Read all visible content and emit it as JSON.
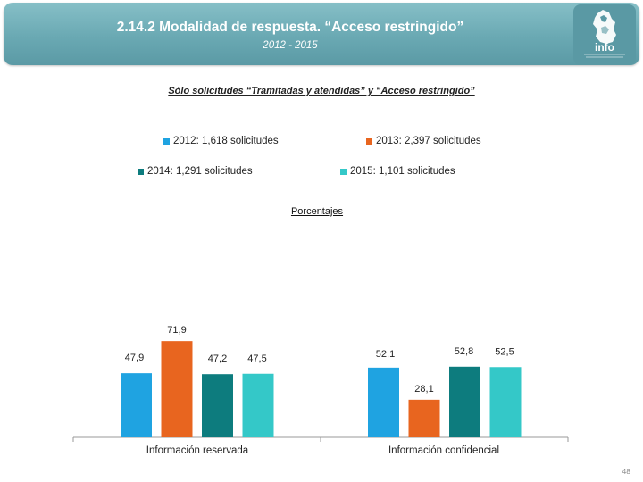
{
  "header": {
    "title": "2.14.2 Modalidad de respuesta. “Acceso restringido”",
    "years": "2012 - 2015",
    "logo_text": "info"
  },
  "subtitle": "Sólo solicitudes “Tramitadas y atendidas” y “Acceso restringido”",
  "legend": [
    {
      "label": "2012: 1,618 solicitudes",
      "color": "#1fa3e1"
    },
    {
      "label": "2013: 2,397 solicitudes",
      "color": "#e8651f"
    },
    {
      "label": "2014: 1,291 solicitudes",
      "color": "#0d7c7e"
    },
    {
      "label": "2015: 1,101 solicitudes",
      "color": "#34c8c8"
    }
  ],
  "section_label": "Porcentajes",
  "chart_data": {
    "type": "bar",
    "categories": [
      "Información reservada",
      "Información confidencial"
    ],
    "series": [
      {
        "name": "2012: 1,618 solicitudes",
        "values": [
          47.9,
          52.1
        ],
        "labels": [
          "47,9",
          "52,1"
        ],
        "color": "#1fa3e1"
      },
      {
        "name": "2013: 2,397 solicitudes",
        "values": [
          71.9,
          28.1
        ],
        "labels": [
          "71,9",
          "28,1"
        ],
        "color": "#e8651f"
      },
      {
        "name": "2014: 1,291 solicitudes",
        "values": [
          47.2,
          52.8
        ],
        "labels": [
          "47,2",
          "52,8"
        ],
        "color": "#0d7c7e"
      },
      {
        "name": "2015: 1,101 solicitudes",
        "values": [
          47.5,
          52.5
        ],
        "labels": [
          "47,5",
          "52,5"
        ],
        "color": "#34c8c8"
      }
    ],
    "ylim": [
      0,
      100
    ],
    "grid": false,
    "legend_position": "top"
  },
  "page_number": "48"
}
